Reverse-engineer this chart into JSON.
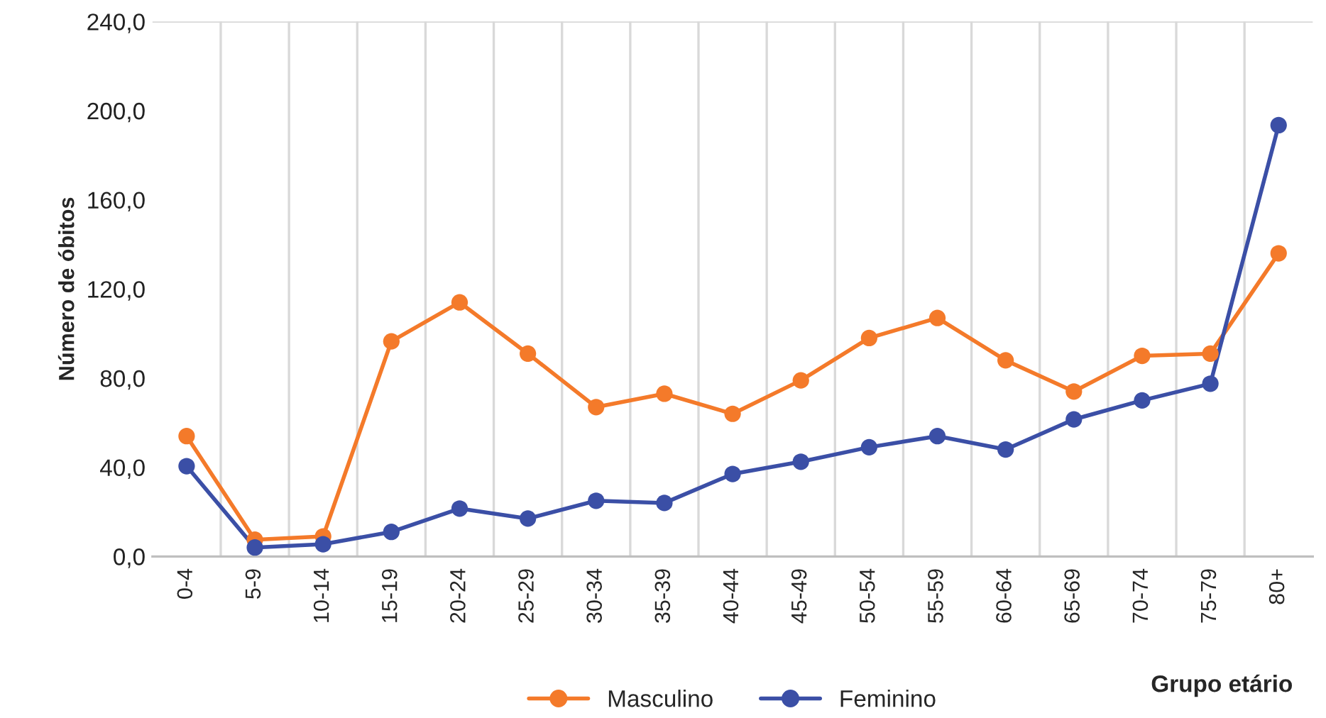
{
  "chart_data": {
    "type": "line",
    "xlabel": "Grupo etário",
    "ylabel": "Número de óbitos",
    "categories": [
      "0-4",
      "5-9",
      "10-14",
      "15-19",
      "20-24",
      "25-29",
      "30-34",
      "35-39",
      "40-44",
      "45-49",
      "50-54",
      "55-59",
      "60-64",
      "65-69",
      "70-74",
      "75-79",
      "80+"
    ],
    "series": [
      {
        "name": "Masculino",
        "color": "#f47a2a",
        "values": [
          54,
          7.5,
          9,
          96.5,
          114,
          91,
          67,
          73,
          64,
          79,
          98,
          107,
          88,
          74,
          90,
          91,
          136
        ]
      },
      {
        "name": "Feminino",
        "color": "#3b4fa6",
        "values": [
          40.5,
          4,
          5.5,
          11,
          21.5,
          17,
          25,
          24,
          37,
          42.5,
          49,
          54,
          48,
          61.5,
          70,
          77.5,
          193.5
        ]
      }
    ],
    "ylim": [
      0,
      240
    ],
    "yticks": [
      {
        "value": 0,
        "label": "0,0"
      },
      {
        "value": 40,
        "label": "40,0"
      },
      {
        "value": 80,
        "label": "80,0"
      },
      {
        "value": 120,
        "label": "120,0"
      },
      {
        "value": 160,
        "label": "160,0"
      },
      {
        "value": 200,
        "label": "200,0"
      },
      {
        "value": 240,
        "label": "240,0"
      }
    ],
    "grid": "x",
    "legend": "bottom",
    "marker": "circle",
    "line_style": "solid"
  }
}
